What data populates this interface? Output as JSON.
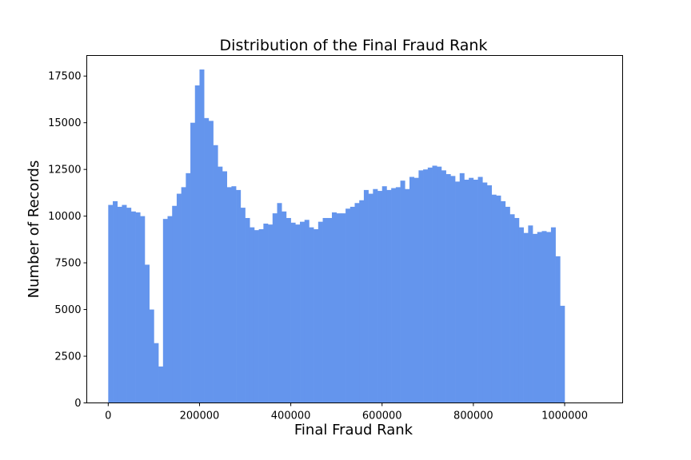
{
  "chart_data": {
    "type": "bar",
    "subtype": "histogram",
    "title": "Distribution of the Final Fraud Rank",
    "xlabel": "Final Fraud Rank",
    "ylabel": "Number of Records",
    "xlim": [
      -47000,
      1127000
    ],
    "ylim": [
      0,
      18600
    ],
    "x_ticks": [
      0,
      200000,
      400000,
      600000,
      800000,
      1000000
    ],
    "y_ticks": [
      0,
      2500,
      5000,
      7500,
      10000,
      12500,
      15000,
      17500
    ],
    "grid": false,
    "legend": "none",
    "bar_color": "#6495ED",
    "bin_start": 0,
    "bin_width": 10000,
    "values": [
      10600,
      10800,
      10500,
      10600,
      10450,
      10250,
      10200,
      10000,
      7400,
      5000,
      3200,
      1950,
      9850,
      10000,
      10550,
      11200,
      11550,
      12300,
      15000,
      17000,
      17850,
      15250,
      15100,
      13800,
      12650,
      12400,
      11550,
      11600,
      11400,
      10450,
      9900,
      9400,
      9250,
      9300,
      9600,
      9550,
      10150,
      10700,
      10250,
      9900,
      9650,
      9550,
      9700,
      9800,
      9400,
      9300,
      9700,
      9900,
      9900,
      10200,
      10150,
      10150,
      10400,
      10500,
      10700,
      10850,
      11400,
      11200,
      11450,
      11350,
      11600,
      11400,
      11500,
      11550,
      11900,
      11450,
      12100,
      12050,
      12450,
      12500,
      12600,
      12700,
      12650,
      12450,
      12250,
      12150,
      11850,
      12300,
      11950,
      12050,
      11950,
      12100,
      11800,
      11650,
      11150,
      11100,
      10800,
      10500,
      10100,
      9900,
      9400,
      9100,
      9500,
      9050,
      9150,
      9200,
      9150,
      9400,
      7850,
      5200
    ]
  }
}
